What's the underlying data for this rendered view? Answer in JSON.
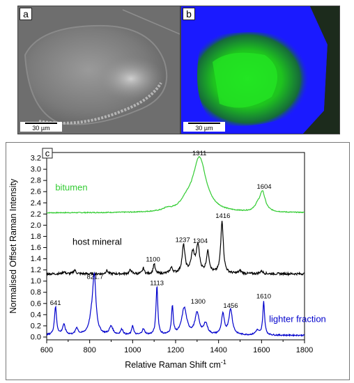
{
  "panels": {
    "a": {
      "letter": "a",
      "scale_label": "30 µm"
    },
    "b": {
      "letter": "b",
      "scale_label": "30 µm"
    },
    "c": {
      "letter": "c"
    }
  },
  "colors": {
    "bitumen": "#33cc33",
    "host_mineral": "#000000",
    "lighter_fraction": "#0000cc",
    "map_background": "#1a1aff",
    "map_green": "#22dd22"
  },
  "chart_data": {
    "type": "line",
    "title": "",
    "xlabel": "Relative Raman Shift cm",
    "xlabel_superscript": "-1",
    "ylabel": "Normalised Offset Raman Intensity",
    "xlim": [
      600,
      1800
    ],
    "ylim": [
      -0.05,
      3.3
    ],
    "x_ticks": [
      600,
      800,
      1000,
      1200,
      1400,
      1600,
      1800
    ],
    "y_ticks": [
      "0.0",
      "0.2",
      "0.4",
      "0.6",
      "0.8",
      "1.0",
      "1.2",
      "1.4",
      "1.6",
      "1.8",
      "2.0",
      "2.2",
      "2.4",
      "2.6",
      "2.8",
      "3.0",
      "3.2"
    ],
    "grid": false,
    "series": [
      {
        "name": "bitumen",
        "color": "#33cc33",
        "baseline": 2.22,
        "noise": 0.008,
        "label_pos": [
          640,
          2.62
        ],
        "peaks": [
          [
            1311,
            0.98,
            38
          ],
          [
            1250,
            0.12,
            30
          ],
          [
            1160,
            0.04,
            20
          ],
          [
            1604,
            0.36,
            16
          ],
          [
            1580,
            0.08,
            14
          ]
        ]
      },
      {
        "name": "host mineral",
        "color": "#000000",
        "baseline": 1.13,
        "noise": 0.02,
        "label_pos": [
          720,
          1.65
        ],
        "peaks": [
          [
            1416,
            0.95,
            7
          ],
          [
            1237,
            0.5,
            8
          ],
          [
            1304,
            0.48,
            9
          ],
          [
            1280,
            0.35,
            10
          ],
          [
            1350,
            0.38,
            8
          ],
          [
            1100,
            0.18,
            5
          ],
          [
            1050,
            0.1,
            5
          ],
          [
            990,
            0.07,
            6
          ],
          [
            880,
            0.06,
            6
          ],
          [
            730,
            0.07,
            6
          ],
          [
            680,
            0.04,
            6
          ],
          [
            1500,
            0.05,
            8
          ],
          [
            1600,
            0.05,
            8
          ],
          [
            1180,
            0.1,
            8
          ]
        ]
      },
      {
        "name": "lighter fraction",
        "color": "#0000cc",
        "baseline": 0.03,
        "noise": 0.012,
        "label_pos": [
          1635,
          0.27
        ],
        "peaks": [
          [
            821.7,
            0.96,
            9
          ],
          [
            810,
            0.25,
            14
          ],
          [
            641,
            0.5,
            6
          ],
          [
            680,
            0.18,
            8
          ],
          [
            740,
            0.12,
            7
          ],
          [
            900,
            0.15,
            10
          ],
          [
            950,
            0.1,
            7
          ],
          [
            1000,
            0.17,
            5
          ],
          [
            1050,
            0.1,
            8
          ],
          [
            1113,
            0.88,
            5
          ],
          [
            1185,
            0.5,
            5
          ],
          [
            1240,
            0.48,
            14
          ],
          [
            1300,
            0.38,
            12
          ],
          [
            1340,
            0.2,
            10
          ],
          [
            1420,
            0.36,
            8
          ],
          [
            1456,
            0.45,
            10
          ],
          [
            1610,
            0.6,
            5
          ],
          [
            1580,
            0.08,
            10
          ]
        ]
      }
    ],
    "annotations": [
      {
        "text": "1311",
        "x": 1311,
        "y": 3.25
      },
      {
        "text": "1604",
        "x": 1612,
        "y": 2.65
      },
      {
        "text": "1416",
        "x": 1420,
        "y": 2.13
      },
      {
        "text": "1237",
        "x": 1233,
        "y": 1.7
      },
      {
        "text": "1304",
        "x": 1315,
        "y": 1.68
      },
      {
        "text": "1100",
        "x": 1095,
        "y": 1.35
      },
      {
        "text": "821.7",
        "x": 825,
        "y": 1.04
      },
      {
        "text": "1113",
        "x": 1113,
        "y": 0.93
      },
      {
        "text": "641",
        "x": 641,
        "y": 0.57
      },
      {
        "text": "1300",
        "x": 1305,
        "y": 0.6
      },
      {
        "text": "1456",
        "x": 1456,
        "y": 0.52
      },
      {
        "text": "1610",
        "x": 1610,
        "y": 0.69
      }
    ]
  }
}
